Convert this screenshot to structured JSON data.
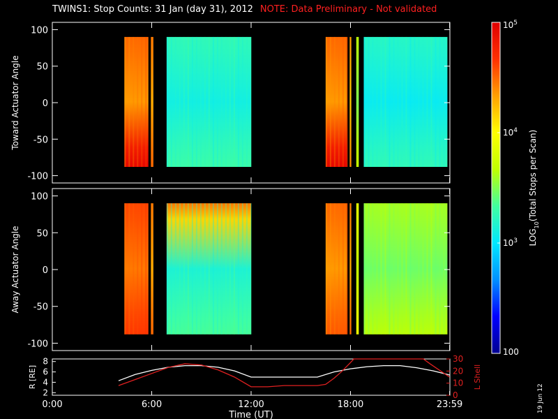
{
  "title": {
    "main": "TWINS1: Stop Counts: 31 Jan (day  31), 2012",
    "note": "NOTE: Data Preliminary - Not validated"
  },
  "date_stamp": "19 Jun 12",
  "colors": {
    "background": "#000000",
    "axes": "#ffffff",
    "note": "#ff2020",
    "r_line": "#ffffff",
    "l_line": "#e02020"
  },
  "colorbar": {
    "label": "LOG10(Total Stops per Scan)",
    "label_base": "LOG",
    "label_sub": "10",
    "label_rest": "(Total Stops per Scan)",
    "ticks": [
      {
        "value": 5,
        "label": "10",
        "sup": "5"
      },
      {
        "value": 4,
        "label": "10",
        "sup": "4"
      },
      {
        "value": 3,
        "label": "10",
        "sup": "3"
      },
      {
        "value": 2,
        "label": "100",
        "sup": ""
      }
    ],
    "range": [
      2,
      5
    ],
    "colormap": [
      "#000090",
      "#0000ff",
      "#0090ff",
      "#00e8ff",
      "#40ffa0",
      "#c0ff00",
      "#ffff00",
      "#ffa000",
      "#ff3000",
      "#e00000"
    ]
  },
  "chart_data": [
    {
      "type": "heatmap",
      "ylabel": "Toward Actuator Angle",
      "ylim": [
        -110,
        110
      ],
      "yticks": [
        100,
        50,
        0,
        -50,
        -100
      ],
      "xlim": [
        0,
        24
      ],
      "segments": [
        {
          "start": 4.35,
          "end": 5.8,
          "log_level": 4.45,
          "high_angle_edge": true
        },
        {
          "start": 5.95,
          "end": 6.1,
          "log_level": 4.4
        },
        {
          "start": 6.9,
          "end": 12.0,
          "log_level": 3.2
        },
        {
          "start": 16.5,
          "end": 17.8,
          "log_level": 4.45,
          "high_angle_edge": true
        },
        {
          "start": 17.95,
          "end": 18.05,
          "log_level": 4.3
        },
        {
          "start": 18.35,
          "end": 18.5,
          "log_level": 3.6
        },
        {
          "start": 18.8,
          "end": 23.85,
          "log_level": 3.15
        }
      ],
      "angle_range": [
        -88,
        90
      ]
    },
    {
      "type": "heatmap",
      "ylabel": "Away Actuator Angle",
      "ylim": [
        -110,
        110
      ],
      "yticks": [
        100,
        50,
        0,
        -50,
        -100
      ],
      "xlim": [
        0,
        24
      ],
      "segments": [
        {
          "start": 4.35,
          "end": 5.8,
          "log_level": 4.55
        },
        {
          "start": 5.95,
          "end": 6.1,
          "log_level": 4.4
        },
        {
          "start": 6.9,
          "end": 12.0,
          "log_level": 3.25,
          "hot_top": true
        },
        {
          "start": 16.5,
          "end": 17.8,
          "log_level": 4.45
        },
        {
          "start": 17.95,
          "end": 18.05,
          "log_level": 4.4
        },
        {
          "start": 18.35,
          "end": 18.5,
          "log_level": 3.8
        },
        {
          "start": 18.8,
          "end": 23.85,
          "log_level": 3.55
        }
      ],
      "angle_range": [
        -88,
        90
      ]
    },
    {
      "type": "line",
      "xlabel": "Time (UT)",
      "ylabel_left": "R [RE]",
      "ylabel_right": "L Shell",
      "ylim_left": [
        1.5,
        8.5
      ],
      "ylim_right": [
        0,
        30
      ],
      "yticks_left": [
        8,
        6,
        4,
        2
      ],
      "yticks_right": [
        30,
        20,
        10,
        0
      ],
      "xticks": [
        {
          "value": 0,
          "label": "0:00"
        },
        {
          "value": 6,
          "label": "6:00"
        },
        {
          "value": 12,
          "label": "12:00"
        },
        {
          "value": 18,
          "label": "18:00"
        },
        {
          "value": 23.983,
          "label": "23:59"
        }
      ],
      "series": [
        {
          "name": "R",
          "axis": "left",
          "x": [
            4,
            5,
            6,
            7,
            8,
            9,
            10,
            11,
            12,
            13,
            14,
            15,
            16,
            17,
            18,
            19,
            20,
            21,
            22,
            23,
            24
          ],
          "y": [
            4.3,
            5.5,
            6.3,
            6.9,
            7.2,
            7.2,
            6.9,
            6.2,
            5.0,
            5.0,
            5.0,
            5.0,
            5.0,
            6.0,
            6.6,
            7.0,
            7.2,
            7.2,
            6.8,
            6.2,
            5.4
          ]
        },
        {
          "name": "L Shell",
          "axis": "right",
          "x": [
            4,
            5,
            6,
            7,
            8,
            9,
            10,
            11,
            12,
            13,
            14,
            15,
            16,
            16.5,
            17,
            17.5,
            18,
            18.2,
            18.6,
            22.4,
            22.8,
            24
          ],
          "y": [
            8,
            13,
            18,
            23,
            26,
            25,
            21,
            15,
            7,
            7,
            8,
            8,
            8,
            9,
            14,
            20,
            27,
            30,
            30,
            30,
            26,
            15
          ]
        }
      ]
    }
  ]
}
